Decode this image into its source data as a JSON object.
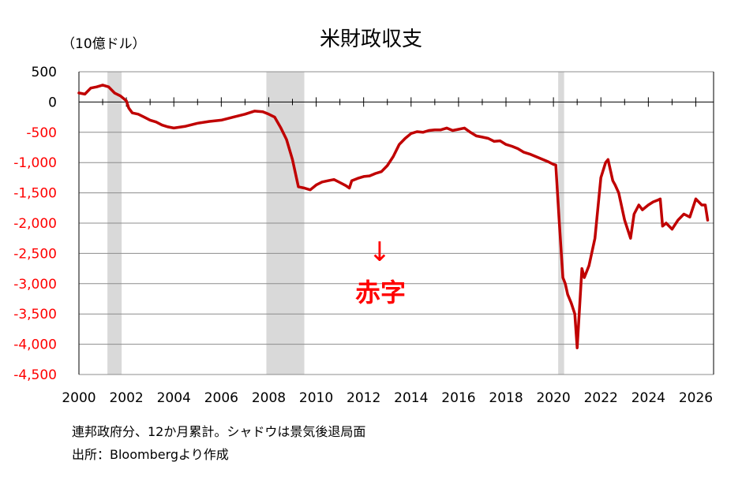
{
  "chart_data": {
    "type": "line",
    "title": "米財政収支",
    "unit_label": "（10億ドル）",
    "xlabel": "",
    "ylabel": "",
    "xlim": [
      2000,
      2026.75
    ],
    "ylim": [
      -4500,
      500
    ],
    "y_ticks": [
      500,
      0,
      -500,
      -1000,
      -1500,
      -2000,
      -2500,
      -3000,
      -3500,
      -4000,
      -4500
    ],
    "y_tick_labels": [
      "500",
      "0",
      "-500",
      "-1,000",
      "-1,500",
      "-2,000",
      "-2,500",
      "-3,000",
      "-3,500",
      "-4,000",
      "-4,500"
    ],
    "x_ticks": [
      2000,
      2002,
      2004,
      2006,
      2008,
      2010,
      2012,
      2014,
      2016,
      2018,
      2020,
      2022,
      2024,
      2026
    ],
    "x_tick_labels": [
      "2000",
      "2002",
      "2004",
      "2006",
      "2008",
      "2010",
      "2012",
      "2014",
      "2016",
      "2018",
      "2020",
      "2022",
      "2024",
      "2026"
    ],
    "grid": true,
    "colors": {
      "line": "#c00000",
      "negative_tick": "#ff0000",
      "shade": "#d9d9d9",
      "annotation": "#ff0000"
    },
    "recessions": [
      [
        2001.2,
        2001.8
      ],
      [
        2007.9,
        2009.5
      ],
      [
        2020.2,
        2020.45
      ]
    ],
    "series": [
      {
        "x": [
          2000.0,
          2000.25,
          2000.5,
          2000.75,
          2001.0,
          2001.25,
          2001.5,
          2001.75,
          2002.0,
          2002.1,
          2002.25,
          2002.5,
          2002.75,
          2003.0,
          2003.25,
          2003.5,
          2003.75,
          2004.0,
          2004.5,
          2005.0,
          2005.5,
          2006.0,
          2006.5,
          2007.0,
          2007.4,
          2007.75,
          2008.0,
          2008.25,
          2008.5,
          2008.75,
          2009.0,
          2009.25,
          2009.5,
          2009.75,
          2010.0,
          2010.25,
          2010.5,
          2010.75,
          2011.0,
          2011.25,
          2011.4,
          2011.5,
          2011.75,
          2012.0,
          2012.25,
          2012.5,
          2012.75,
          2013.0,
          2013.25,
          2013.5,
          2013.75,
          2014.0,
          2014.25,
          2014.5,
          2014.75,
          2015.0,
          2015.25,
          2015.5,
          2015.75,
          2016.0,
          2016.25,
          2016.5,
          2016.75,
          2017.0,
          2017.25,
          2017.5,
          2017.75,
          2018.0,
          2018.25,
          2018.5,
          2018.75,
          2019.0,
          2019.25,
          2019.5,
          2019.75,
          2020.0,
          2020.1,
          2020.25,
          2020.4,
          2020.5,
          2020.6,
          2020.75,
          2020.9,
          2021.0,
          2021.1,
          2021.2,
          2021.3,
          2021.5,
          2021.75,
          2022.0,
          2022.2,
          2022.3,
          2022.5,
          2022.6,
          2022.75,
          2023.0,
          2023.25,
          2023.4,
          2023.6,
          2023.75,
          2024.0,
          2024.2,
          2024.4,
          2024.5,
          2024.6,
          2024.75,
          2025.0,
          2025.25,
          2025.5,
          2025.75,
          2026.0,
          2026.25,
          2026.4,
          2026.5
        ],
        "values": [
          150,
          130,
          230,
          250,
          280,
          250,
          150,
          100,
          20,
          -100,
          -180,
          -200,
          -250,
          -300,
          -330,
          -380,
          -410,
          -430,
          -400,
          -350,
          -320,
          -300,
          -250,
          -200,
          -150,
          -160,
          -200,
          -250,
          -420,
          -620,
          -950,
          -1400,
          -1420,
          -1450,
          -1370,
          -1320,
          -1300,
          -1280,
          -1330,
          -1380,
          -1420,
          -1300,
          -1260,
          -1230,
          -1220,
          -1180,
          -1150,
          -1050,
          -900,
          -700,
          -600,
          -520,
          -490,
          -500,
          -470,
          -460,
          -460,
          -430,
          -470,
          -450,
          -430,
          -500,
          -560,
          -580,
          -600,
          -650,
          -640,
          -700,
          -730,
          -770,
          -830,
          -860,
          -900,
          -940,
          -980,
          -1030,
          -1040,
          -2000,
          -2900,
          -3000,
          -3180,
          -3320,
          -3500,
          -4060,
          -3400,
          -2750,
          -2900,
          -2700,
          -2250,
          -1250,
          -1000,
          -950,
          -1300,
          -1370,
          -1500,
          -1950,
          -2250,
          -1850,
          -1700,
          -1780,
          -1700,
          -1650,
          -1620,
          -1600,
          -2050,
          -2000,
          -2100,
          -1950,
          -1850,
          -1900,
          -1600,
          -1700,
          -1700,
          -1950
        ]
      }
    ],
    "annotation": {
      "arrow": "↓",
      "text": "赤字"
    },
    "footnotes": [
      "連邦政府分、12か月累計。シャドウは景気後退局面",
      "出所：Bloombergより作成"
    ]
  }
}
